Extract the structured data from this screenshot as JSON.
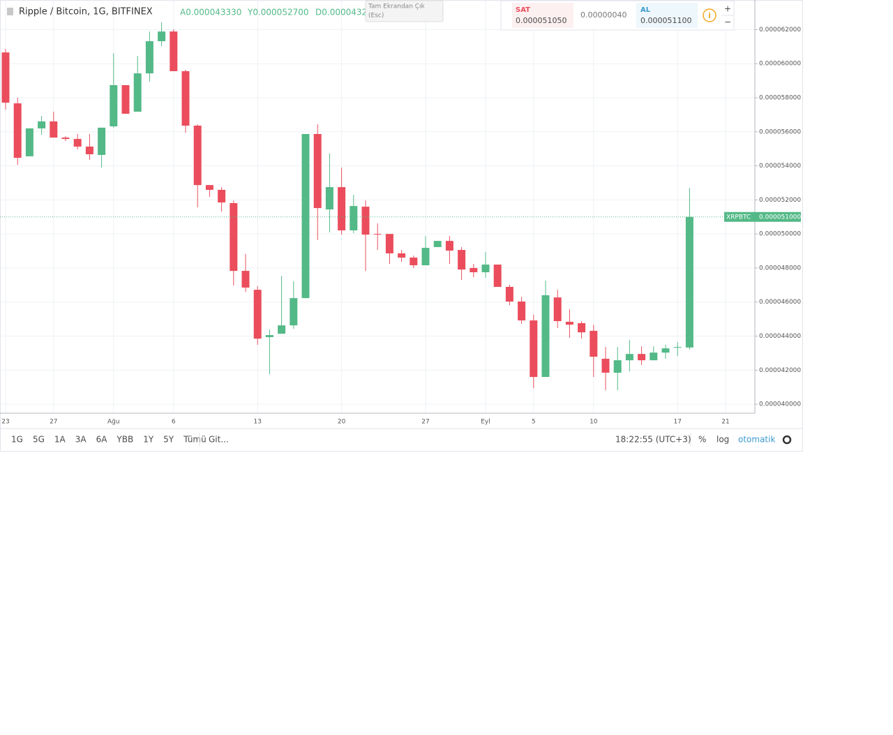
{
  "header": {
    "symbol": "Ripple / Bitcoin, 1G, BITFINEX",
    "open": "A0.000043330",
    "high": "Y0.000052700",
    "low": "D0.0000432",
    "fullscreen_exit": "Tam Ekrandan Çık",
    "fullscreen_key": "(Esc)"
  },
  "trade": {
    "sell_label": "SAT",
    "sell_price": "0.000051050",
    "spread": "0.00000040",
    "buy_label": "AL",
    "buy_price": "0.000051100",
    "zoom_in": "+",
    "zoom_out": "−"
  },
  "chart_data": {
    "type": "candlestick",
    "categories": [
      "23",
      null,
      null,
      null,
      "27",
      null,
      null,
      null,
      null,
      "Ağu",
      null,
      null,
      null,
      null,
      "6",
      null,
      null,
      null,
      null,
      null,
      null,
      "13",
      null,
      null,
      null,
      null,
      null,
      null,
      "20",
      null,
      null,
      null,
      null,
      null,
      null,
      "27",
      null,
      null,
      null,
      null,
      "Eyl",
      null,
      null,
      null,
      "5",
      null,
      null,
      null,
      null,
      "10",
      null,
      null,
      null,
      null,
      null,
      null,
      "17",
      null,
      null,
      null,
      "21",
      null,
      null
    ],
    "open": [
      6.066e-05,
      5.767e-05,
      5.456e-05,
      5.62e-05,
      5.661e-05,
      5.566e-05,
      5.558e-05,
      5.513e-05,
      5.464e-05,
      5.632e-05,
      5.874e-05,
      5.718e-05,
      5.943e-05,
      6.132e-05,
      6.189e-05,
      5.956e-05,
      5.636e-05,
      5.287e-05,
      5.259e-05,
      5.181e-05,
      4.783e-05,
      4.672e-05,
      4.394e-05,
      4.414e-05,
      4.463e-05,
      4.623e-05,
      5.587e-05,
      5.144e-05,
      5.275e-05,
      5.021e-05,
      5.16e-05,
      5e-05,
      5e-05,
      4.886e-05,
      4.861e-05,
      4.816e-05,
      4.923e-05,
      4.959e-05,
      4.906e-05,
      4.8e-05,
      4.775e-05,
      4.82e-05,
      4.689e-05,
      4.603e-05,
      4.492e-05,
      4.16e-05,
      4.627e-05,
      4.484e-05,
      4.476e-05,
      4.431e-05,
      4.267e-05,
      4.185e-05,
      4.258e-05,
      4.295e-05,
      4.258e-05,
      4.303e-05,
      4.332e-05,
      4.333e-05,
      null,
      null,
      null,
      null,
      null
    ],
    "high": [
      6.087e-05,
      5.8e-05,
      5.62e-05,
      5.693e-05,
      5.718e-05,
      5.574e-05,
      5.587e-05,
      5.587e-05,
      5.624e-05,
      6.062e-05,
      5.874e-05,
      6.046e-05,
      6.189e-05,
      6.243e-05,
      6.202e-05,
      5.964e-05,
      5.644e-05,
      5.287e-05,
      5.275e-05,
      5.197e-05,
      4.882e-05,
      4.693e-05,
      4.439e-05,
      4.754e-05,
      4.722e-05,
      5.587e-05,
      5.644e-05,
      5.472e-05,
      5.39e-05,
      5.23e-05,
      5.197e-05,
      5.062e-05,
      5e-05,
      4.906e-05,
      4.873e-05,
      4.988e-05,
      4.959e-05,
      4.988e-05,
      4.923e-05,
      4.824e-05,
      4.894e-05,
      4.82e-05,
      4.701e-05,
      4.631e-05,
      4.525e-05,
      4.726e-05,
      4.672e-05,
      4.558e-05,
      4.488e-05,
      4.467e-05,
      4.336e-05,
      4.336e-05,
      4.377e-05,
      4.34e-05,
      4.34e-05,
      4.349e-05,
      4.365e-05,
      5.27e-05,
      null,
      null,
      null,
      null,
      null
    ],
    "low": [
      5.73e-05,
      5.406e-05,
      5.456e-05,
      5.583e-05,
      5.566e-05,
      5.546e-05,
      5.497e-05,
      5.435e-05,
      5.39e-05,
      5.624e-05,
      5.706e-05,
      5.718e-05,
      5.894e-05,
      6.103e-05,
      5.956e-05,
      5.595e-05,
      5.156e-05,
      5.218e-05,
      5.132e-05,
      4.697e-05,
      4.66e-05,
      4.349e-05,
      4.176e-05,
      4.414e-05,
      4.443e-05,
      4.623e-05,
      4.964e-05,
      5.009e-05,
      4.996e-05,
      5.005e-05,
      4.783e-05,
      4.906e-05,
      4.824e-05,
      4.836e-05,
      4.8e-05,
      4.816e-05,
      4.923e-05,
      4.824e-05,
      4.73e-05,
      4.746e-05,
      4.742e-05,
      4.689e-05,
      4.582e-05,
      4.472e-05,
      4.094e-05,
      4.16e-05,
      4.447e-05,
      4.39e-05,
      4.385e-05,
      4.16e-05,
      4.082e-05,
      4.082e-05,
      4.193e-05,
      4.23e-05,
      4.258e-05,
      4.267e-05,
      4.283e-05,
      4.32e-05,
      null,
      null,
      null,
      null,
      null
    ],
    "close": [
      5.771e-05,
      5.447e-05,
      5.62e-05,
      5.661e-05,
      5.566e-05,
      5.558e-05,
      5.513e-05,
      5.468e-05,
      5.624e-05,
      5.874e-05,
      5.706e-05,
      5.943e-05,
      6.132e-05,
      6.189e-05,
      5.956e-05,
      5.636e-05,
      5.287e-05,
      5.259e-05,
      5.185e-05,
      4.783e-05,
      4.685e-05,
      4.385e-05,
      4.406e-05,
      4.463e-05,
      4.623e-05,
      5.587e-05,
      5.152e-05,
      5.275e-05,
      5.021e-05,
      5.164e-05,
      4.996e-05,
      4.996e-05,
      4.886e-05,
      4.861e-05,
      4.816e-05,
      4.918e-05,
      4.959e-05,
      4.902e-05,
      4.791e-05,
      4.775e-05,
      4.82e-05,
      4.689e-05,
      4.603e-05,
      4.492e-05,
      4.16e-05,
      4.64e-05,
      4.488e-05,
      4.467e-05,
      4.422e-05,
      4.279e-05,
      4.185e-05,
      4.258e-05,
      4.295e-05,
      4.258e-05,
      4.303e-05,
      4.328e-05,
      4.336e-05,
      5.1e-05,
      null,
      null,
      null,
      null,
      null
    ],
    "up_color": "#53b987",
    "down_color": "#eb4d5c",
    "ylim": [
      3.947e-05,
      6.374e-05
    ],
    "yticks": [
      {
        "value": 4e-05,
        "label": "0.000040000"
      },
      {
        "value": 4.2e-05,
        "label": "0.000042000"
      },
      {
        "value": 4.4e-05,
        "label": "0.000044000"
      },
      {
        "value": 4.6e-05,
        "label": "0.000046000"
      },
      {
        "value": 4.8e-05,
        "label": "0.000048000"
      },
      {
        "value": 5e-05,
        "label": "0.000050000"
      },
      {
        "value": 5.2e-05,
        "label": "0.000052000"
      },
      {
        "value": 5.4e-05,
        "label": "0.000054000"
      },
      {
        "value": 5.6e-05,
        "label": "0.000056000"
      },
      {
        "value": 5.8e-05,
        "label": "0.000058000"
      },
      {
        "value": 6e-05,
        "label": "0.000060000"
      },
      {
        "value": 6.2e-05,
        "label": "0.000062000"
      }
    ],
    "grid": true,
    "price_line": {
      "symbol": "XRPBTC",
      "value": 5.1e-05,
      "label": "0.000051000",
      "color": "#53b987"
    }
  },
  "footer": {
    "ranges": [
      "1G",
      "5G",
      "1A",
      "3A",
      "6A",
      "YBB",
      "1Y",
      "5Y",
      "Tümü"
    ],
    "goto": "Git...",
    "time": "18:22:55 (UTC+3)",
    "percent": "%",
    "log": "log",
    "auto": "otomatik"
  }
}
